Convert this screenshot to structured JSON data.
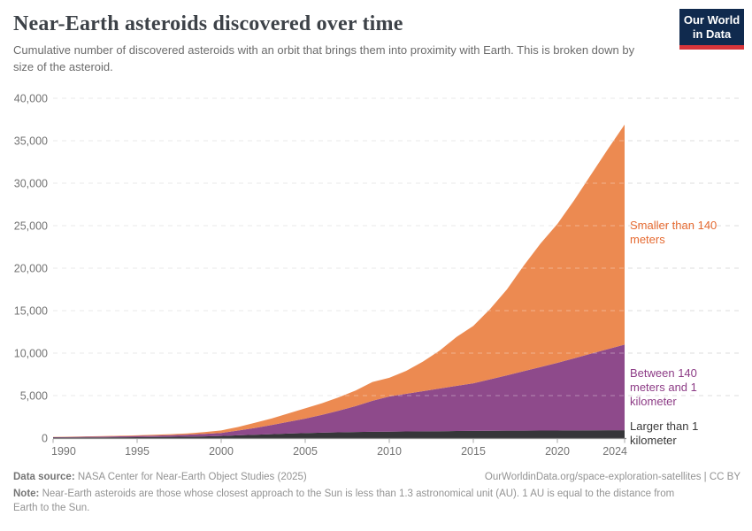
{
  "header": {
    "title": "Near-Earth asteroids discovered over time",
    "subtitle": "Cumulative number of discovered asteroids with an orbit that brings them into proximity with Earth. This is broken down by size of the asteroid."
  },
  "logo": {
    "line1": "Our World",
    "line2": "in Data",
    "bg_color": "#102a4e",
    "stripe_color": "#d8353a"
  },
  "footer": {
    "data_source_label": "Data source:",
    "data_source_text": " NASA Center for Near-Earth Object Studies (2025)",
    "attribution": "OurWorldinData.org/space-exploration-satellites | CC BY",
    "note_label": "Note:",
    "note_text": " Near-Earth asteroids are those whose closest approach to the Sun is less than 1.3 astronomical unit (AU). 1 AU is equal to the distance from Earth to the Sun."
  },
  "chart_data": {
    "type": "area",
    "stacked": true,
    "title": "Near-Earth asteroids discovered over time",
    "xlabel": "",
    "ylabel": "",
    "grid": "dashed",
    "legend_position": "right",
    "xlim": [
      1990,
      2024
    ],
    "ylim": [
      0,
      40000
    ],
    "x_ticks": [
      1990,
      1995,
      2000,
      2005,
      2010,
      2015,
      2020,
      2024
    ],
    "y_ticks": [
      0,
      5000,
      10000,
      15000,
      20000,
      25000,
      30000,
      35000,
      40000
    ],
    "x": [
      1990,
      1991,
      1992,
      1993,
      1994,
      1995,
      1996,
      1997,
      1998,
      1999,
      2000,
      2001,
      2002,
      2003,
      2004,
      2005,
      2006,
      2007,
      2008,
      2009,
      2010,
      2011,
      2012,
      2013,
      2014,
      2015,
      2016,
      2017,
      2018,
      2019,
      2020,
      2021,
      2022,
      2023,
      2024
    ],
    "series": [
      {
        "name": "Larger than 1 kilometer",
        "label": "Larger than 1\nkilometer",
        "color": "#363639",
        "label_color": "#3a3a3a",
        "values": [
          50,
          60,
          72,
          82,
          95,
          110,
          125,
          140,
          165,
          200,
          250,
          320,
          390,
          460,
          530,
          590,
          640,
          680,
          710,
          740,
          760,
          780,
          795,
          810,
          830,
          850,
          860,
          868,
          875,
          882,
          890,
          900,
          910,
          920,
          930
        ]
      },
      {
        "name": "Between 140 meters and 1 kilometer",
        "label": "Between 140\nmeters and 1\nkilometer",
        "color": "#8e4a8b",
        "label_color": "#8d3c86",
        "values": [
          60,
          72,
          85,
          98,
          118,
          140,
          165,
          200,
          240,
          290,
          350,
          560,
          800,
          1080,
          1390,
          1700,
          2100,
          2550,
          3050,
          3650,
          4130,
          4430,
          4730,
          5020,
          5310,
          5600,
          6050,
          6520,
          7000,
          7480,
          7960,
          8490,
          9020,
          9550,
          10070
        ]
      },
      {
        "name": "Smaller than 140 meters",
        "label": "Smaller than 140\nmeters",
        "color": "#ec8a51",
        "label_color": "#e56a31",
        "values": [
          24,
          33,
          38,
          50,
          62,
          80,
          100,
          120,
          145,
          210,
          300,
          420,
          610,
          760,
          980,
          1210,
          1360,
          1570,
          1840,
          2210,
          2210,
          2690,
          3475,
          4470,
          5760,
          6750,
          8290,
          10112,
          12425,
          14538,
          16350,
          18610,
          21070,
          23530,
          25900
        ]
      }
    ],
    "axis_colors": {
      "grid": "#dcdcdc",
      "axis_line": "#8a8a8a",
      "tick_label": "#737373"
    }
  }
}
